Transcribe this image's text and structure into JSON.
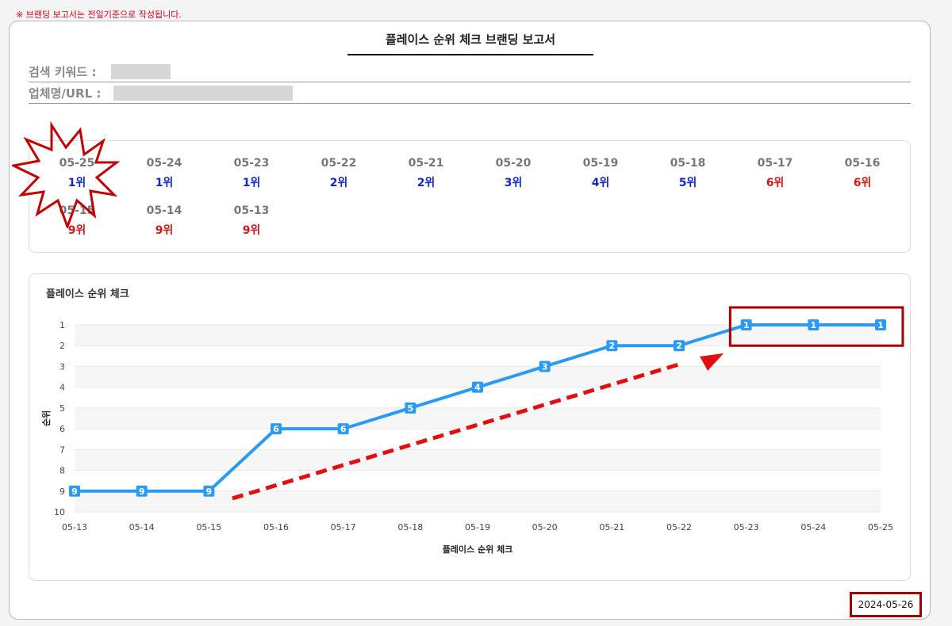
{
  "notice": "※ 브랜딩 보고서는 전일기준으로 작성됩니다.",
  "report": {
    "title": "플레이스 순위 체크 브랜딩 보고서",
    "keyword_label": "검색 키워드 :",
    "business_label": "업체명/URL :"
  },
  "rankings": [
    {
      "date": "05-25",
      "rank": "1위",
      "color": "#1428c8"
    },
    {
      "date": "05-24",
      "rank": "1위",
      "color": "#1428c8"
    },
    {
      "date": "05-23",
      "rank": "1위",
      "color": "#1428c8"
    },
    {
      "date": "05-22",
      "rank": "2위",
      "color": "#1428c8"
    },
    {
      "date": "05-21",
      "rank": "2위",
      "color": "#1428c8"
    },
    {
      "date": "05-20",
      "rank": "3위",
      "color": "#1428c8"
    },
    {
      "date": "05-19",
      "rank": "4위",
      "color": "#1428c8"
    },
    {
      "date": "05-18",
      "rank": "5위",
      "color": "#1428c8"
    },
    {
      "date": "05-17",
      "rank": "6위",
      "color": "#d01818"
    },
    {
      "date": "05-16",
      "rank": "6위",
      "color": "#d01818"
    },
    {
      "date": "05-15",
      "rank": "9위",
      "color": "#d01818"
    },
    {
      "date": "05-14",
      "rank": "9위",
      "color": "#d01818"
    },
    {
      "date": "05-13",
      "rank": "9위",
      "color": "#d01818"
    }
  ],
  "chart_data": {
    "type": "line",
    "title": "플레이스 순위 체크",
    "xlabel": "플레이스 순위 체크",
    "ylabel": "순위",
    "ylim": [
      1,
      10
    ],
    "y_inverted": true,
    "yticks": [
      1,
      2,
      3,
      4,
      5,
      6,
      7,
      8,
      9,
      10
    ],
    "categories": [
      "05-13",
      "05-14",
      "05-15",
      "05-16",
      "05-17",
      "05-18",
      "05-19",
      "05-20",
      "05-21",
      "05-22",
      "05-23",
      "05-24",
      "05-25"
    ],
    "series": [
      {
        "values": [
          9,
          9,
          9,
          6,
          6,
          5,
          4,
          3,
          2,
          2,
          1,
          1,
          1
        ],
        "color": "#2b9af3"
      }
    ],
    "annotations": {
      "trend_arrow_color": "#e01010",
      "highlight_box_color": "#a40000"
    }
  },
  "report_date": "2024-05-26"
}
